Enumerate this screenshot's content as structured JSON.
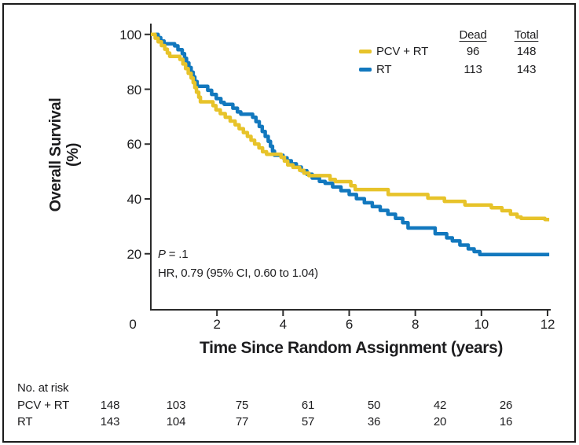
{
  "figure": {
    "background": "#ffffff",
    "border_color": "#1b1b1b",
    "axis_color": "#2b2b2b",
    "text_color": "#1d1d1f"
  },
  "chart_data": {
    "type": "line",
    "subtype": "kaplan-meier-step",
    "title": "",
    "xlabel": "Time Since Random Assignment (years)",
    "ylabel": "Overall Survival (%)",
    "ylabel_lines": [
      "Overall Survival",
      "(%)"
    ],
    "xlim": [
      0,
      12.3
    ],
    "ylim": [
      0,
      104
    ],
    "x_ticks": [
      0,
      2,
      4,
      6,
      8,
      10,
      12
    ],
    "y_ticks": [
      20,
      40,
      60,
      80,
      100
    ],
    "grid": false,
    "legend_position": "top-right",
    "legend_headers": {
      "dead": "Dead",
      "total": "Total"
    },
    "series": [
      {
        "name": "PCV + RT",
        "color": "#E7C32A",
        "dead": 96,
        "total": 148,
        "points": [
          [
            0,
            100
          ],
          [
            0.13,
            98.6
          ],
          [
            0.22,
            97.3
          ],
          [
            0.32,
            95.9
          ],
          [
            0.42,
            94.6
          ],
          [
            0.5,
            93.2
          ],
          [
            0.57,
            92.0
          ],
          [
            0.88,
            90.9
          ],
          [
            0.97,
            89.2
          ],
          [
            1.05,
            87.5
          ],
          [
            1.13,
            85.8
          ],
          [
            1.22,
            84.1
          ],
          [
            1.28,
            82.4
          ],
          [
            1.33,
            80.6
          ],
          [
            1.38,
            78.9
          ],
          [
            1.45,
            77.1
          ],
          [
            1.5,
            75.4
          ],
          [
            1.88,
            74.0
          ],
          [
            1.97,
            72.5
          ],
          [
            2.1,
            71.1
          ],
          [
            2.25,
            69.8
          ],
          [
            2.4,
            68.4
          ],
          [
            2.55,
            67.0
          ],
          [
            2.67,
            65.6
          ],
          [
            2.8,
            64.2
          ],
          [
            2.92,
            62.8
          ],
          [
            3.03,
            61.4
          ],
          [
            3.14,
            60.0
          ],
          [
            3.27,
            58.6
          ],
          [
            3.38,
            57.2
          ],
          [
            3.5,
            56.3
          ],
          [
            3.94,
            55.2
          ],
          [
            4.04,
            53.8
          ],
          [
            4.14,
            52.4
          ],
          [
            4.3,
            51.5
          ],
          [
            4.5,
            50.4
          ],
          [
            4.63,
            49.4
          ],
          [
            4.78,
            48.5
          ],
          [
            5.42,
            47.1
          ],
          [
            5.58,
            46.3
          ],
          [
            6.05,
            44.8
          ],
          [
            6.18,
            43.4
          ],
          [
            7.18,
            41.6
          ],
          [
            8.38,
            40.3
          ],
          [
            8.88,
            39.1
          ],
          [
            9.5,
            37.8
          ],
          [
            10.3,
            36.8
          ],
          [
            10.62,
            35.7
          ],
          [
            10.88,
            34.4
          ],
          [
            11.08,
            33.4
          ],
          [
            11.2,
            32.9
          ],
          [
            11.92,
            32.5
          ],
          [
            12.05,
            32.5
          ]
        ]
      },
      {
        "name": "RT",
        "color": "#1278BE",
        "dead": 113,
        "total": 143,
        "points": [
          [
            0,
            100
          ],
          [
            0.22,
            98.8
          ],
          [
            0.3,
            97.6
          ],
          [
            0.4,
            96.6
          ],
          [
            0.72,
            95.8
          ],
          [
            0.82,
            94.4
          ],
          [
            0.95,
            93.0
          ],
          [
            1.02,
            91.3
          ],
          [
            1.08,
            89.6
          ],
          [
            1.15,
            87.9
          ],
          [
            1.22,
            86.2
          ],
          [
            1.28,
            84.5
          ],
          [
            1.33,
            82.8
          ],
          [
            1.4,
            81.1
          ],
          [
            1.72,
            79.6
          ],
          [
            1.84,
            78.1
          ],
          [
            1.98,
            76.6
          ],
          [
            2.12,
            75.2
          ],
          [
            2.22,
            74.5
          ],
          [
            2.48,
            73.1
          ],
          [
            2.62,
            71.7
          ],
          [
            2.72,
            70.9
          ],
          [
            3.08,
            69.8
          ],
          [
            3.18,
            68.2
          ],
          [
            3.28,
            66.4
          ],
          [
            3.37,
            64.6
          ],
          [
            3.46,
            62.8
          ],
          [
            3.55,
            61.0
          ],
          [
            3.62,
            59.2
          ],
          [
            3.68,
            57.4
          ],
          [
            3.74,
            55.9
          ],
          [
            4.0,
            55.0
          ],
          [
            4.12,
            53.9
          ],
          [
            4.25,
            52.8
          ],
          [
            4.4,
            51.6
          ],
          [
            4.55,
            50.3
          ],
          [
            4.72,
            49.0
          ],
          [
            4.88,
            47.6
          ],
          [
            5.1,
            46.4
          ],
          [
            5.27,
            45.7
          ],
          [
            5.5,
            44.4
          ],
          [
            5.75,
            43.0
          ],
          [
            6.0,
            41.6
          ],
          [
            6.22,
            40.1
          ],
          [
            6.46,
            38.6
          ],
          [
            6.7,
            37.2
          ],
          [
            6.94,
            35.8
          ],
          [
            7.17,
            34.4
          ],
          [
            7.4,
            32.9
          ],
          [
            7.62,
            31.3
          ],
          [
            7.78,
            29.4
          ],
          [
            8.6,
            27.3
          ],
          [
            8.95,
            25.8
          ],
          [
            9.12,
            24.7
          ],
          [
            9.35,
            23.2
          ],
          [
            9.6,
            21.8
          ],
          [
            9.78,
            20.8
          ],
          [
            9.95,
            19.7
          ],
          [
            12.05,
            19.7
          ]
        ]
      }
    ],
    "annotations": {
      "p_italic_label": "P",
      "p_text": " = .1",
      "hr_text": "HR, 0.79 (95% CI, 0.60 to 1.04)"
    },
    "at_risk": {
      "label": "No. at risk",
      "times": [
        0,
        2,
        4,
        6,
        8,
        10,
        12
      ],
      "rows": [
        {
          "name": "PCV + RT",
          "counts": [
            148,
            103,
            75,
            61,
            50,
            42,
            26
          ]
        },
        {
          "name": "RT",
          "counts": [
            143,
            104,
            77,
            57,
            36,
            20,
            16
          ]
        }
      ]
    }
  }
}
